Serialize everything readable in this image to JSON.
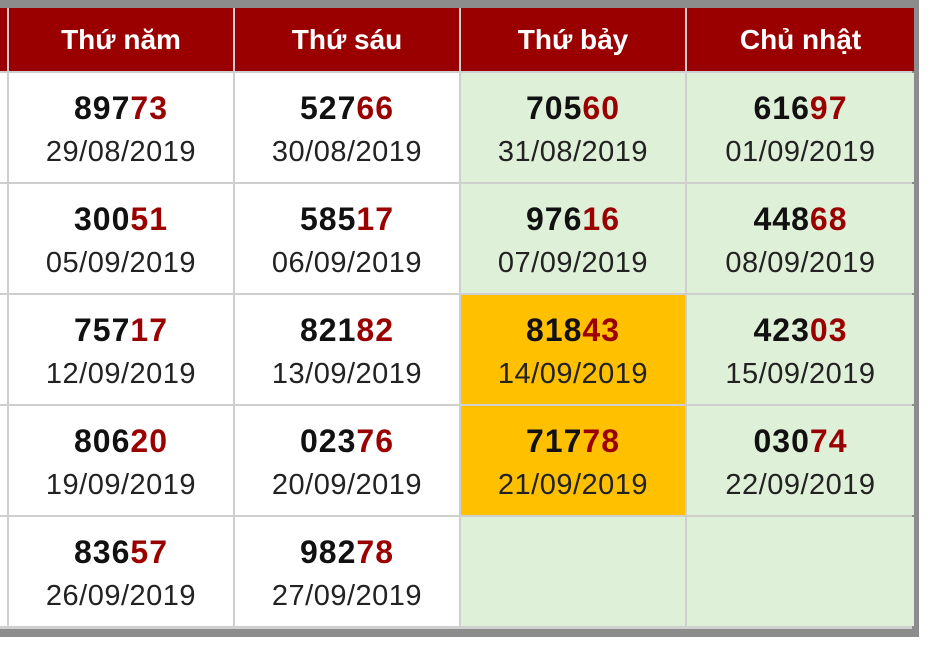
{
  "colors": {
    "header_bg": "#9b0000",
    "header_text": "#ffffff",
    "suffix_text": "#9b0000",
    "weekend_bg": "#dff0d8",
    "highlight_bg": "#ffc000"
  },
  "headers": [
    "Thứ năm",
    "Thứ sáu",
    "Thứ bảy",
    "Chủ nhật"
  ],
  "rows": [
    [
      {
        "prefix": "897",
        "suffix": "73",
        "date": "29/08/2019",
        "style": "plain"
      },
      {
        "prefix": "527",
        "suffix": "66",
        "date": "30/08/2019",
        "style": "plain"
      },
      {
        "prefix": "705",
        "suffix": "60",
        "date": "31/08/2019",
        "style": "green"
      },
      {
        "prefix": "616",
        "suffix": "97",
        "date": "01/09/2019",
        "style": "green"
      }
    ],
    [
      {
        "prefix": "300",
        "suffix": "51",
        "date": "05/09/2019",
        "style": "plain"
      },
      {
        "prefix": "585",
        "suffix": "17",
        "date": "06/09/2019",
        "style": "plain"
      },
      {
        "prefix": "976",
        "suffix": "16",
        "date": "07/09/2019",
        "style": "green"
      },
      {
        "prefix": "448",
        "suffix": "68",
        "date": "08/09/2019",
        "style": "green"
      }
    ],
    [
      {
        "prefix": "757",
        "suffix": "17",
        "date": "12/09/2019",
        "style": "plain"
      },
      {
        "prefix": "821",
        "suffix": "82",
        "date": "13/09/2019",
        "style": "plain"
      },
      {
        "prefix": "818",
        "suffix": "43",
        "date": "14/09/2019",
        "style": "orange"
      },
      {
        "prefix": "423",
        "suffix": "03",
        "date": "15/09/2019",
        "style": "green"
      }
    ],
    [
      {
        "prefix": "806",
        "suffix": "20",
        "date": "19/09/2019",
        "style": "plain"
      },
      {
        "prefix": "023",
        "suffix": "76",
        "date": "20/09/2019",
        "style": "plain"
      },
      {
        "prefix": "717",
        "suffix": "78",
        "date": "21/09/2019",
        "style": "orange"
      },
      {
        "prefix": "030",
        "suffix": "74",
        "date": "22/09/2019",
        "style": "green"
      }
    ],
    [
      {
        "prefix": "836",
        "suffix": "57",
        "date": "26/09/2019",
        "style": "plain"
      },
      {
        "prefix": "982",
        "suffix": "78",
        "date": "27/09/2019",
        "style": "plain"
      },
      {
        "prefix": "",
        "suffix": "",
        "date": "",
        "style": "green"
      },
      {
        "prefix": "",
        "suffix": "",
        "date": "",
        "style": "green"
      }
    ]
  ]
}
